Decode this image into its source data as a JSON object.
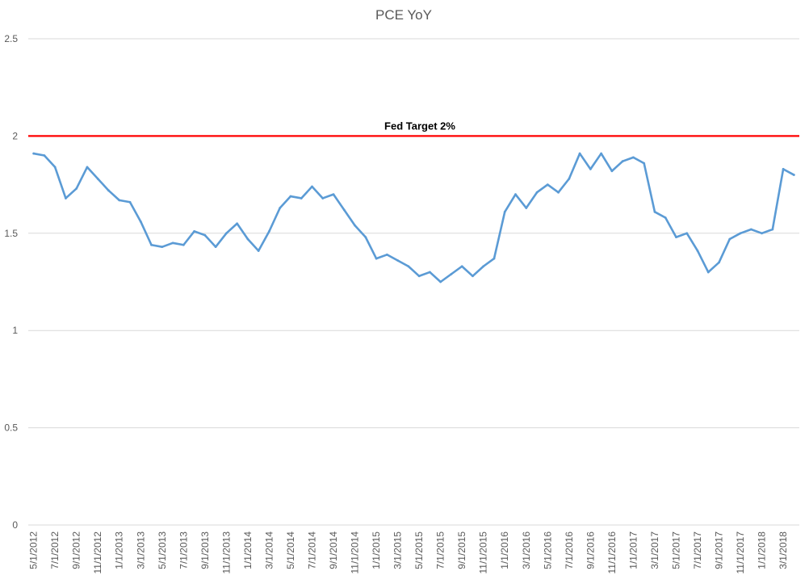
{
  "chart_data": {
    "type": "line",
    "title": "PCE YoY",
    "xlabel": "",
    "ylabel": "",
    "ylim": [
      0,
      2.5
    ],
    "yticks": [
      0,
      0.5,
      1,
      1.5,
      2,
      2.5
    ],
    "yticks_labels": [
      "0",
      "0.5",
      "1",
      "1.5",
      "2",
      "2.5"
    ],
    "grid": true,
    "legend": "none",
    "x": [
      "2012-05",
      "2012-06",
      "2012-07",
      "2012-08",
      "2012-09",
      "2012-10",
      "2012-11",
      "2012-12",
      "2013-01",
      "2013-02",
      "2013-03",
      "2013-04",
      "2013-05",
      "2013-06",
      "2013-07",
      "2013-08",
      "2013-09",
      "2013-10",
      "2013-11",
      "2013-12",
      "2014-01",
      "2014-02",
      "2014-03",
      "2014-04",
      "2014-05",
      "2014-06",
      "2014-07",
      "2014-08",
      "2014-09",
      "2014-10",
      "2014-11",
      "2014-12",
      "2015-01",
      "2015-02",
      "2015-03",
      "2015-04",
      "2015-05",
      "2015-06",
      "2015-07",
      "2015-08",
      "2015-09",
      "2015-10",
      "2015-11",
      "2015-12",
      "2016-01",
      "2016-02",
      "2016-03",
      "2016-04",
      "2016-05",
      "2016-06",
      "2016-07",
      "2016-08",
      "2016-09",
      "2016-10",
      "2016-11",
      "2016-12",
      "2017-01",
      "2017-02",
      "2017-03",
      "2017-04",
      "2017-05",
      "2017-06",
      "2017-07",
      "2017-08",
      "2017-09",
      "2017-10",
      "2017-11",
      "2017-12",
      "2018-01",
      "2018-02",
      "2018-03",
      "2018-04"
    ],
    "x_tick_labels": [
      "5/1/2012",
      "7/1/2012",
      "9/1/2012",
      "11/1/2012",
      "1/1/2013",
      "3/1/2013",
      "5/1/2013",
      "7/1/2013",
      "9/1/2013",
      "11/1/2013",
      "1/1/2014",
      "3/1/2014",
      "5/1/2014",
      "7/1/2014",
      "9/1/2014",
      "11/1/2014",
      "1/1/2015",
      "3/1/2015",
      "5/1/2015",
      "7/1/2015",
      "9/1/2015",
      "11/1/2015",
      "1/1/2016",
      "3/1/2016",
      "5/1/2016",
      "7/1/2016",
      "9/1/2016",
      "11/1/2016",
      "1/1/2017",
      "3/1/2017",
      "5/1/2017",
      "7/1/2017",
      "9/1/2017",
      "11/1/2017",
      "1/1/2018",
      "3/1/2018"
    ],
    "series": [
      {
        "name": "",
        "color": "#5b9bd5",
        "values": [
          1.91,
          1.9,
          1.84,
          1.68,
          1.73,
          1.84,
          1.78,
          1.72,
          1.67,
          1.66,
          1.56,
          1.44,
          1.43,
          1.45,
          1.44,
          1.51,
          1.49,
          1.43,
          1.5,
          1.55,
          1.47,
          1.41,
          1.51,
          1.63,
          1.69,
          1.68,
          1.74,
          1.68,
          1.7,
          1.62,
          1.54,
          1.48,
          1.37,
          1.39,
          1.36,
          1.33,
          1.28,
          1.3,
          1.25,
          1.29,
          1.33,
          1.28,
          1.33,
          1.37,
          1.61,
          1.7,
          1.63,
          1.71,
          1.75,
          1.71,
          1.78,
          1.91,
          1.83,
          1.91,
          1.82,
          1.87,
          1.89,
          1.86,
          1.61,
          1.58,
          1.48,
          1.5,
          1.41,
          1.3,
          1.35,
          1.47,
          1.5,
          1.52,
          1.5,
          1.52,
          1.83,
          1.8
        ]
      }
    ],
    "reference_line": {
      "label": "Fed Target 2%",
      "value": 2.0,
      "color": "#ff0000"
    }
  }
}
